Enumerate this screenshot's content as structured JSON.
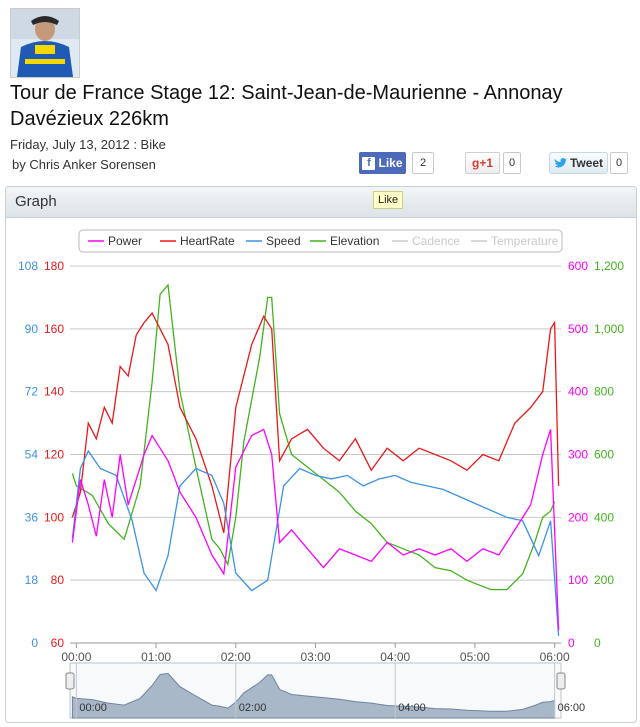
{
  "avatar": {
    "alt": "rider-photo"
  },
  "title": "Tour de France Stage 12: Saint-Jean-de-Maurienne - Annonay Davézieux 226km",
  "meta": "Friday, July 13, 2012 : Bike",
  "byline": "by Chris Anker Sorensen",
  "social": {
    "like_label": "Like",
    "like_count": "2",
    "gplus_label": "+1",
    "gplus_count": "0",
    "tweet_label": "Tweet",
    "tweet_count": "0",
    "tooltip": "Like"
  },
  "panel": {
    "title": "Graph"
  },
  "colors": {
    "power": "#ff00ff",
    "heartrate": "#e8191b",
    "speed": "#3c92e6",
    "elevation": "#44b31f",
    "muted": "#cccccc"
  },
  "chart_data": {
    "type": "line",
    "legend": [
      {
        "name": "Power",
        "color": "#ff00ff",
        "active": true
      },
      {
        "name": "HeartRate",
        "color": "#e8191b",
        "active": true
      },
      {
        "name": "Speed",
        "color": "#3c92e6",
        "active": true
      },
      {
        "name": "Elevation",
        "color": "#44b31f",
        "active": true
      },
      {
        "name": "Cadence",
        "color": "#cccccc",
        "active": false
      },
      {
        "name": "Temperature",
        "color": "#cccccc",
        "active": false
      }
    ],
    "x_ticks": [
      "00:00",
      "01:00",
      "02:00",
      "03:00",
      "04:00",
      "05:00",
      "06:00"
    ],
    "x_range_hours": [
      -0.08,
      6.08
    ],
    "axes": {
      "speed": {
        "ticks": [
          "0",
          "18",
          "36",
          "54",
          "72",
          "90",
          "108"
        ],
        "range": [
          0,
          108
        ]
      },
      "heartrate": {
        "ticks": [
          "60",
          "80",
          "100",
          "120",
          "140",
          "160",
          "180"
        ],
        "range": [
          60,
          180
        ]
      },
      "power": {
        "ticks": [
          "0",
          "100",
          "200",
          "300",
          "400",
          "500",
          "600"
        ],
        "range": [
          0,
          600
        ]
      },
      "elevation": {
        "ticks": [
          "0",
          "200",
          "400",
          "600",
          "800",
          "1,000",
          "1,200"
        ],
        "range": [
          0,
          1200
        ]
      }
    },
    "series": [
      {
        "name": "Elevation",
        "points": [
          [
            -0.05,
            540
          ],
          [
            0,
            500
          ],
          [
            0.2,
            470
          ],
          [
            0.4,
            380
          ],
          [
            0.6,
            330
          ],
          [
            0.8,
            500
          ],
          [
            0.95,
            830
          ],
          [
            1.05,
            1110
          ],
          [
            1.15,
            1140
          ],
          [
            1.3,
            800
          ],
          [
            1.5,
            560
          ],
          [
            1.7,
            330
          ],
          [
            1.8,
            300
          ],
          [
            1.9,
            250
          ],
          [
            2.0,
            400
          ],
          [
            2.1,
            640
          ],
          [
            2.3,
            910
          ],
          [
            2.4,
            1100
          ],
          [
            2.45,
            1100
          ],
          [
            2.55,
            730
          ],
          [
            2.7,
            600
          ],
          [
            2.9,
            560
          ],
          [
            3.1,
            520
          ],
          [
            3.3,
            480
          ],
          [
            3.5,
            420
          ],
          [
            3.7,
            380
          ],
          [
            3.9,
            320
          ],
          [
            4.1,
            300
          ],
          [
            4.3,
            280
          ],
          [
            4.5,
            240
          ],
          [
            4.7,
            230
          ],
          [
            4.9,
            200
          ],
          [
            5.2,
            170
          ],
          [
            5.4,
            170
          ],
          [
            5.6,
            220
          ],
          [
            5.75,
            320
          ],
          [
            5.85,
            400
          ],
          [
            5.95,
            420
          ],
          [
            6.0,
            450
          ]
        ]
      },
      {
        "name": "HeartRate",
        "points": [
          [
            -0.05,
            100
          ],
          [
            0.05,
            108
          ],
          [
            0.15,
            130
          ],
          [
            0.25,
            125
          ],
          [
            0.35,
            135
          ],
          [
            0.45,
            130
          ],
          [
            0.55,
            148
          ],
          [
            0.65,
            145
          ],
          [
            0.75,
            158
          ],
          [
            0.85,
            162
          ],
          [
            0.95,
            165
          ],
          [
            1.05,
            160
          ],
          [
            1.15,
            155
          ],
          [
            1.3,
            135
          ],
          [
            1.5,
            125
          ],
          [
            1.7,
            110
          ],
          [
            1.85,
            95
          ],
          [
            2.0,
            135
          ],
          [
            2.2,
            155
          ],
          [
            2.35,
            164
          ],
          [
            2.45,
            160
          ],
          [
            2.55,
            118
          ],
          [
            2.7,
            125
          ],
          [
            2.9,
            128
          ],
          [
            3.1,
            122
          ],
          [
            3.3,
            118
          ],
          [
            3.5,
            125
          ],
          [
            3.7,
            115
          ],
          [
            3.9,
            122
          ],
          [
            4.1,
            118
          ],
          [
            4.3,
            122
          ],
          [
            4.5,
            120
          ],
          [
            4.7,
            118
          ],
          [
            4.9,
            115
          ],
          [
            5.1,
            120
          ],
          [
            5.3,
            118
          ],
          [
            5.5,
            130
          ],
          [
            5.7,
            135
          ],
          [
            5.85,
            140
          ],
          [
            5.95,
            160
          ],
          [
            6.0,
            162
          ],
          [
            6.05,
            110
          ]
        ]
      },
      {
        "name": "Speed",
        "points": [
          [
            -0.05,
            30
          ],
          [
            0.05,
            50
          ],
          [
            0.15,
            55
          ],
          [
            0.3,
            50
          ],
          [
            0.5,
            48
          ],
          [
            0.7,
            35
          ],
          [
            0.85,
            20
          ],
          [
            1.0,
            15
          ],
          [
            1.15,
            25
          ],
          [
            1.3,
            45
          ],
          [
            1.5,
            50
          ],
          [
            1.7,
            48
          ],
          [
            1.85,
            40
          ],
          [
            2.0,
            20
          ],
          [
            2.2,
            15
          ],
          [
            2.4,
            18
          ],
          [
            2.6,
            45
          ],
          [
            2.8,
            50
          ],
          [
            3.0,
            48
          ],
          [
            3.2,
            47
          ],
          [
            3.4,
            48
          ],
          [
            3.6,
            45
          ],
          [
            3.8,
            47
          ],
          [
            4.0,
            48
          ],
          [
            4.2,
            46
          ],
          [
            4.4,
            45
          ],
          [
            4.6,
            44
          ],
          [
            4.8,
            42
          ],
          [
            5.0,
            40
          ],
          [
            5.2,
            38
          ],
          [
            5.4,
            36
          ],
          [
            5.6,
            35
          ],
          [
            5.8,
            25
          ],
          [
            5.95,
            35
          ],
          [
            6.05,
            2
          ]
        ]
      },
      {
        "name": "Power",
        "points": [
          [
            -0.05,
            160
          ],
          [
            0.05,
            260
          ],
          [
            0.15,
            220
          ],
          [
            0.25,
            170
          ],
          [
            0.35,
            260
          ],
          [
            0.45,
            200
          ],
          [
            0.55,
            300
          ],
          [
            0.65,
            220
          ],
          [
            0.75,
            260
          ],
          [
            0.85,
            300
          ],
          [
            0.95,
            330
          ],
          [
            1.05,
            310
          ],
          [
            1.15,
            290
          ],
          [
            1.3,
            240
          ],
          [
            1.5,
            200
          ],
          [
            1.7,
            140
          ],
          [
            1.85,
            110
          ],
          [
            2.0,
            280
          ],
          [
            2.2,
            330
          ],
          [
            2.35,
            340
          ],
          [
            2.45,
            300
          ],
          [
            2.55,
            160
          ],
          [
            2.7,
            180
          ],
          [
            2.9,
            150
          ],
          [
            3.1,
            120
          ],
          [
            3.3,
            150
          ],
          [
            3.5,
            140
          ],
          [
            3.7,
            130
          ],
          [
            3.9,
            160
          ],
          [
            4.1,
            140
          ],
          [
            4.3,
            150
          ],
          [
            4.5,
            140
          ],
          [
            4.7,
            150
          ],
          [
            4.9,
            130
          ],
          [
            5.1,
            150
          ],
          [
            5.3,
            140
          ],
          [
            5.5,
            180
          ],
          [
            5.7,
            220
          ],
          [
            5.85,
            300
          ],
          [
            5.95,
            340
          ],
          [
            6.05,
            20
          ]
        ]
      }
    ],
    "navigator_ticks": [
      "00:00",
      "02:00",
      "04:00",
      "06:00"
    ]
  }
}
